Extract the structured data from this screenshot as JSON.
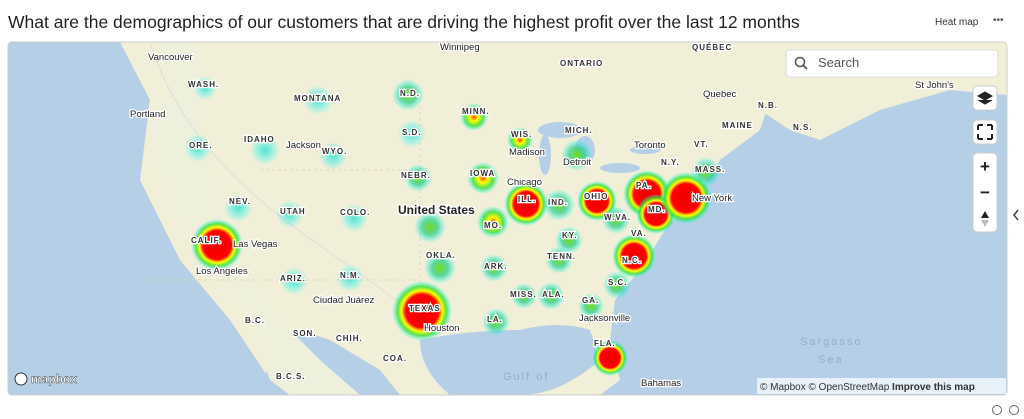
{
  "header": {
    "title": "What are the demographics of our customers that are driving the highest profit over the last 12 months",
    "badge": "Heat map",
    "menu": "•••"
  },
  "map": {
    "search_placeholder": "Search",
    "zoom_in": "+",
    "zoom_out": "−",
    "logo": "mapbox",
    "attribution": [
      "© Mapbox",
      "© OpenStreetMap",
      "Improve this map"
    ],
    "labels": [
      "Winnipeg",
      "QUÉBEC",
      "Vancouver",
      "ONTARIO",
      "WASH.",
      "N.D.",
      "MONTANA",
      "Quebec",
      "N.B.",
      "St John's",
      "Portland",
      "MINN.",
      "MAINE",
      "N.S.",
      "IDAHO",
      "S.D.",
      "WIS.",
      "MICH.",
      "Toronto",
      "ORE.",
      "Jackson",
      "WYO.",
      "Madison",
      "Detroit",
      "N.Y.",
      "VT.",
      "MASS.",
      "NEBR.",
      "IOWA",
      "Chicago",
      "PA.",
      "NEV.",
      "ILL.",
      "IND.",
      "OHIO",
      "New York",
      "United States",
      "UTAH",
      "COLO.",
      "MD.",
      "MO.",
      "W.VA.",
      "VA.",
      "CALIF.",
      "Las Vegas",
      "KY.",
      "Los Angeles",
      "OKLA.",
      "TENN.",
      "N.C.",
      "ARIZ.",
      "N.M.",
      "ARK.",
      "S.C.",
      "MISS.",
      "ALA.",
      "GA.",
      "Ciudad Juárez",
      "TEXAS",
      "Jacksonville",
      "LA.",
      "B.C.",
      "Houston",
      "SON.",
      "CHIH.",
      "FLA.",
      "Sargasso",
      "Sea",
      "COA.",
      "B.C.S.",
      "Gulf of",
      "Bahamas"
    ]
  }
}
